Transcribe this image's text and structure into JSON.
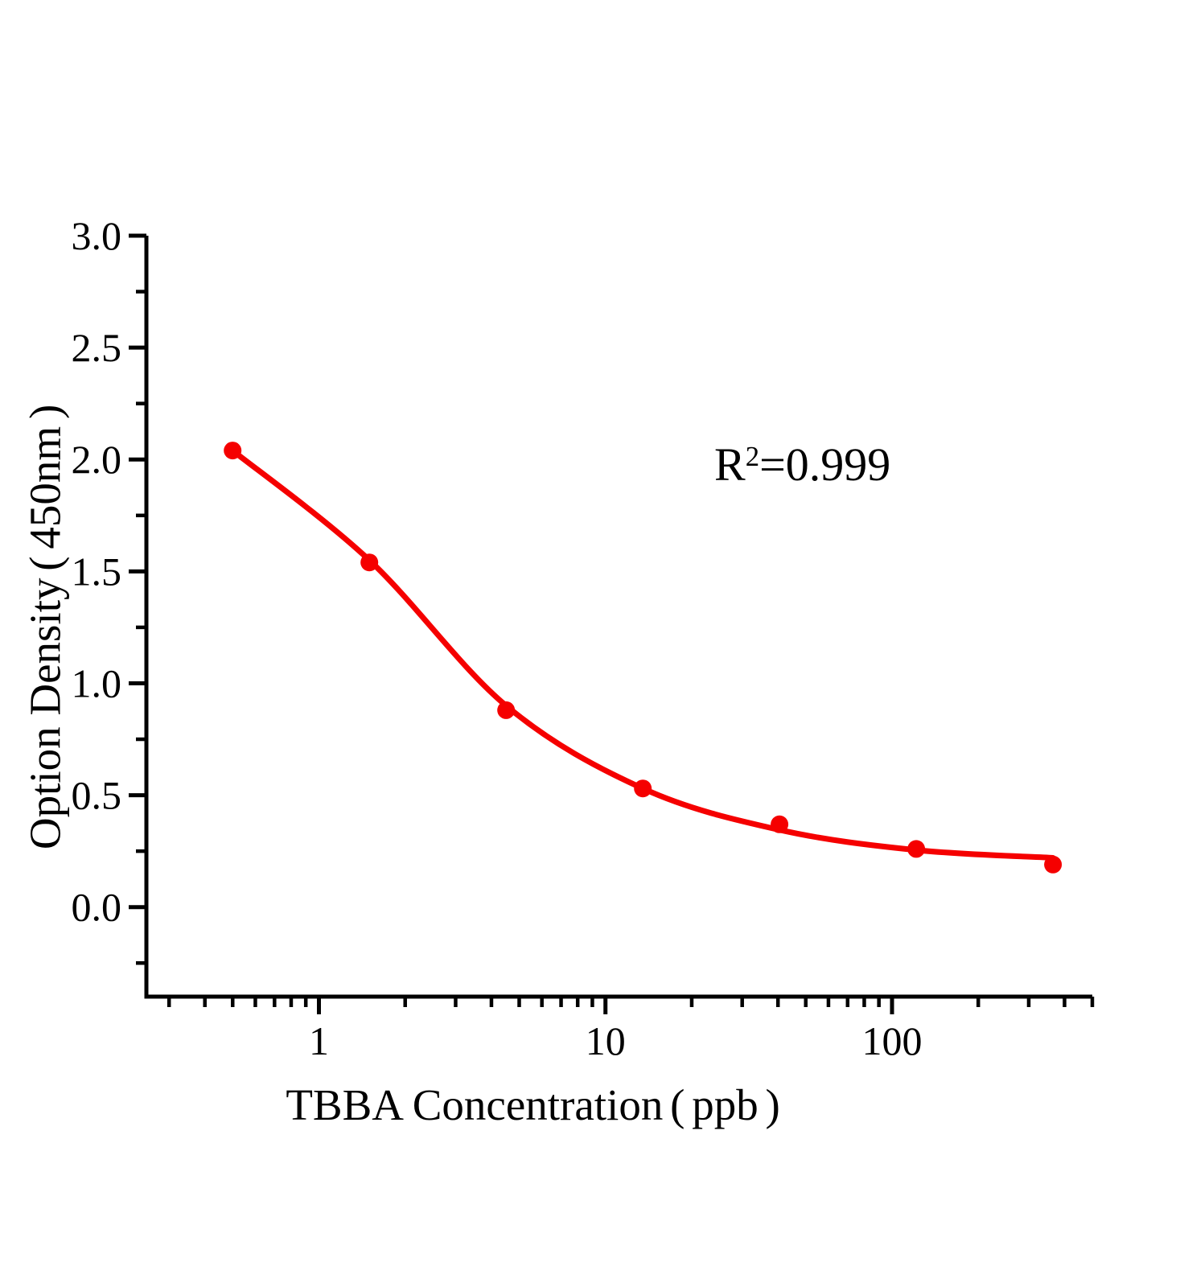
{
  "chart_data": {
    "type": "scatter",
    "title": "",
    "xlabel": "TBBA Concentration（ppb）",
    "ylabel": "Option Density（450nm）",
    "annotation": {
      "text": "R²=0.999",
      "base": "R",
      "sup": "2",
      "rest": "=0.999"
    },
    "x_scale": "log",
    "y_scale": "linear",
    "xlim": [
      0.25,
      500
    ],
    "ylim": [
      -0.4,
      3.0
    ],
    "grid": false,
    "legend": null,
    "axis_color": "#000000",
    "series_color": "#f50000",
    "marker": "circle",
    "x_axis": {
      "major_ticks": [
        {
          "value": 1,
          "label": "1"
        },
        {
          "value": 10,
          "label": "10"
        },
        {
          "value": 100,
          "label": "100"
        }
      ],
      "minor_ticks": [
        0.3,
        0.4,
        0.5,
        0.6,
        0.7,
        0.8,
        0.9,
        2,
        3,
        4,
        5,
        6,
        7,
        8,
        9,
        20,
        30,
        40,
        50,
        60,
        70,
        80,
        90,
        200,
        300,
        400,
        500
      ]
    },
    "y_axis": {
      "major_ticks": [
        {
          "value": 0.0,
          "label": "0.0"
        },
        {
          "value": 0.5,
          "label": "0.5"
        },
        {
          "value": 1.0,
          "label": "1.0"
        },
        {
          "value": 1.5,
          "label": "1.5"
        },
        {
          "value": 2.0,
          "label": "2.0"
        },
        {
          "value": 2.5,
          "label": "2.5"
        },
        {
          "value": 3.0,
          "label": "3.0"
        }
      ],
      "minor_ticks": [
        -0.25,
        0.25,
        0.75,
        1.25,
        1.75,
        2.25,
        2.75
      ]
    },
    "points": [
      {
        "x": 0.5,
        "y": 2.04
      },
      {
        "x": 1.5,
        "y": 1.54
      },
      {
        "x": 4.5,
        "y": 0.88
      },
      {
        "x": 13.5,
        "y": 0.53
      },
      {
        "x": 40.5,
        "y": 0.37
      },
      {
        "x": 121.5,
        "y": 0.26
      },
      {
        "x": 364.5,
        "y": 0.19
      }
    ],
    "fit_curve": {
      "points": [
        [
          0.5,
          2.04
        ],
        [
          1.5,
          1.55
        ],
        [
          4.5,
          0.9
        ],
        [
          13.5,
          0.53
        ],
        [
          40.5,
          0.345
        ],
        [
          121.5,
          0.255
        ],
        [
          364.5,
          0.22
        ]
      ]
    }
  }
}
